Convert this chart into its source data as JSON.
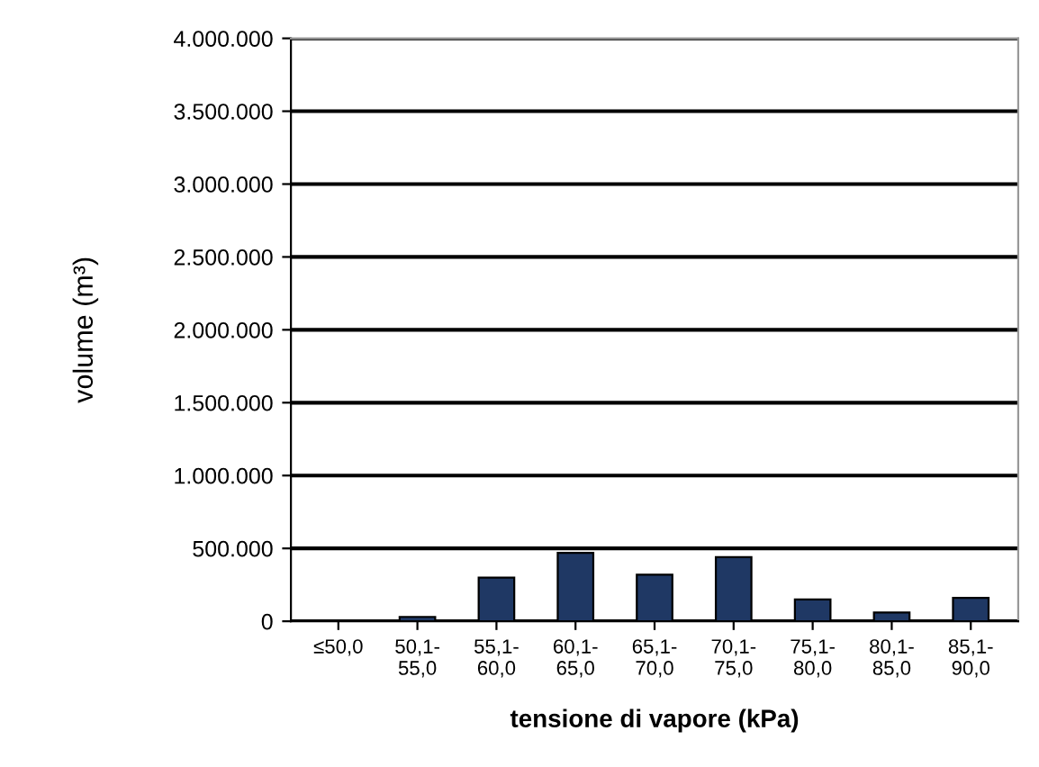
{
  "chart_data": {
    "type": "bar",
    "xlabel": "tensione di vapore (kPa)",
    "ylabel": "volume (m³)",
    "categories": [
      "≤50,0",
      "50,1-\n55,0",
      "55,1-\n60,0",
      "60,1-\n65,0",
      "65,1-\n70,0",
      "70,1-\n75,0",
      "75,1-\n80,0",
      "80,1-\n85,0",
      "85,1-\n90,0"
    ],
    "values": [
      5000,
      30000,
      300000,
      470000,
      320000,
      440000,
      150000,
      60000,
      160000
    ],
    "color": "#1f3864",
    "ylim": [
      0,
      4000000
    ],
    "yticks": [
      0,
      {
        "value": 500000,
        "label": "500.000"
      },
      {
        "value": 1000000,
        "label": "1.000.000"
      },
      {
        "value": 1500000,
        "label": "1.500.000"
      },
      {
        "value": 2000000,
        "label": "2.000.000"
      },
      {
        "value": 2500000,
        "label": "2.500.000"
      },
      {
        "value": 3000000,
        "label": "3.000.000"
      },
      {
        "value": 3500000,
        "label": "3.500.000"
      },
      {
        "value": 4000000,
        "label": "4.000.000"
      }
    ],
    "grid": "y"
  }
}
